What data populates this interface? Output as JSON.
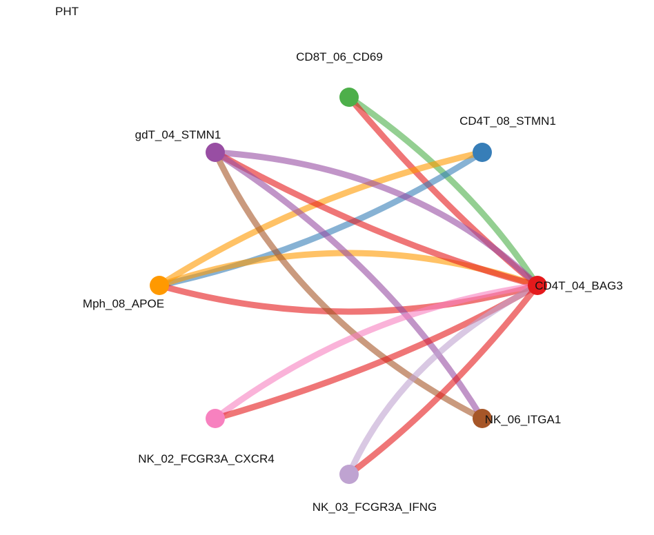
{
  "title": "PHT",
  "nodes": [
    {
      "id": "CD8T_06_CD69",
      "label": "CD8T_06_CD69",
      "color": "#4DAF4A"
    },
    {
      "id": "CD4T_08_STMN1",
      "label": "CD4T_08_STMN1",
      "color": "#377EB8"
    },
    {
      "id": "gdT_04_STMN1",
      "label": "gdT_04_STMN1",
      "color": "#984EA3"
    },
    {
      "id": "Mph_08_APOE",
      "label": "Mph_08_APOE",
      "color": "#FF9900"
    },
    {
      "id": "CD4T_04_BAG3",
      "label": "CD4T_04_BAG3",
      "color": "#E41A1C"
    },
    {
      "id": "NK_06_ITGA1",
      "label": "NK_06_ITGA1",
      "color": "#A65628"
    },
    {
      "id": "NK_02_FCGR3A_CXCR4",
      "label": "NK_02_FCGR3A_CXCR4",
      "color": "#F781BF"
    },
    {
      "id": "NK_03_FCGR3A_IFNG",
      "label": "NK_03_FCGR3A_IFNG",
      "color": "#BFA3D1"
    }
  ],
  "edges": [
    {
      "source": "CD8T_06_CD69",
      "target": "CD4T_04_BAG3",
      "color": "#4DAF4A"
    },
    {
      "source": "CD4T_04_BAG3",
      "target": "CD8T_06_CD69",
      "color": "#E41A1C"
    },
    {
      "source": "CD4T_08_STMN1",
      "target": "Mph_08_APOE",
      "color": "#377EB8"
    },
    {
      "source": "Mph_08_APOE",
      "target": "CD4T_08_STMN1",
      "color": "#FF9900"
    },
    {
      "source": "Mph_08_APOE",
      "target": "CD4T_04_BAG3",
      "color": "#FF9900"
    },
    {
      "source": "CD4T_04_BAG3",
      "target": "Mph_08_APOE",
      "color": "#E41A1C"
    },
    {
      "source": "gdT_04_STMN1",
      "target": "CD4T_04_BAG3",
      "color": "#984EA3"
    },
    {
      "source": "CD4T_04_BAG3",
      "target": "gdT_04_STMN1",
      "color": "#E41A1C"
    },
    {
      "source": "gdT_04_STMN1",
      "target": "NK_06_ITGA1",
      "color": "#984EA3"
    },
    {
      "source": "NK_06_ITGA1",
      "target": "gdT_04_STMN1",
      "color": "#A65628"
    },
    {
      "source": "NK_02_FCGR3A_CXCR4",
      "target": "CD4T_04_BAG3",
      "color": "#F781BF"
    },
    {
      "source": "CD4T_04_BAG3",
      "target": "NK_02_FCGR3A_CXCR4",
      "color": "#E41A1C"
    },
    {
      "source": "NK_03_FCGR3A_IFNG",
      "target": "CD4T_04_BAG3",
      "color": "#BFA3D1"
    },
    {
      "source": "CD4T_04_BAG3",
      "target": "NK_03_FCGR3A_IFNG",
      "color": "#E41A1C"
    }
  ]
}
